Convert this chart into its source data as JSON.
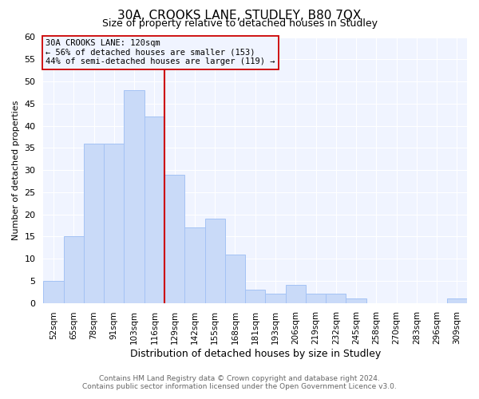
{
  "title": "30A, CROOKS LANE, STUDLEY, B80 7QX",
  "subtitle": "Size of property relative to detached houses in Studley",
  "xlabel": "Distribution of detached houses by size in Studley",
  "ylabel": "Number of detached properties",
  "bar_labels": [
    "52sqm",
    "65sqm",
    "78sqm",
    "91sqm",
    "103sqm",
    "116sqm",
    "129sqm",
    "142sqm",
    "155sqm",
    "168sqm",
    "181sqm",
    "193sqm",
    "206sqm",
    "219sqm",
    "232sqm",
    "245sqm",
    "258sqm",
    "270sqm",
    "283sqm",
    "296sqm",
    "309sqm"
  ],
  "bar_values": [
    5,
    15,
    36,
    36,
    48,
    42,
    29,
    17,
    19,
    11,
    3,
    2,
    4,
    2,
    2,
    1,
    0,
    0,
    0,
    0,
    1
  ],
  "bar_color": "#c9daf8",
  "bar_edgecolor": "#a4c2f4",
  "vline_x": 5.5,
  "vline_color": "#cc0000",
  "annotation_title": "30A CROOKS LANE: 120sqm",
  "annotation_line1": "← 56% of detached houses are smaller (153)",
  "annotation_line2": "44% of semi-detached houses are larger (119) →",
  "annotation_box_edgecolor": "#cc0000",
  "ylim": [
    0,
    60
  ],
  "yticks": [
    0,
    5,
    10,
    15,
    20,
    25,
    30,
    35,
    40,
    45,
    50,
    55,
    60
  ],
  "footer_line1": "Contains HM Land Registry data © Crown copyright and database right 2024.",
  "footer_line2": "Contains public sector information licensed under the Open Government Licence v3.0.",
  "background_color": "#ffffff",
  "plot_bg_color": "#f0f4ff"
}
